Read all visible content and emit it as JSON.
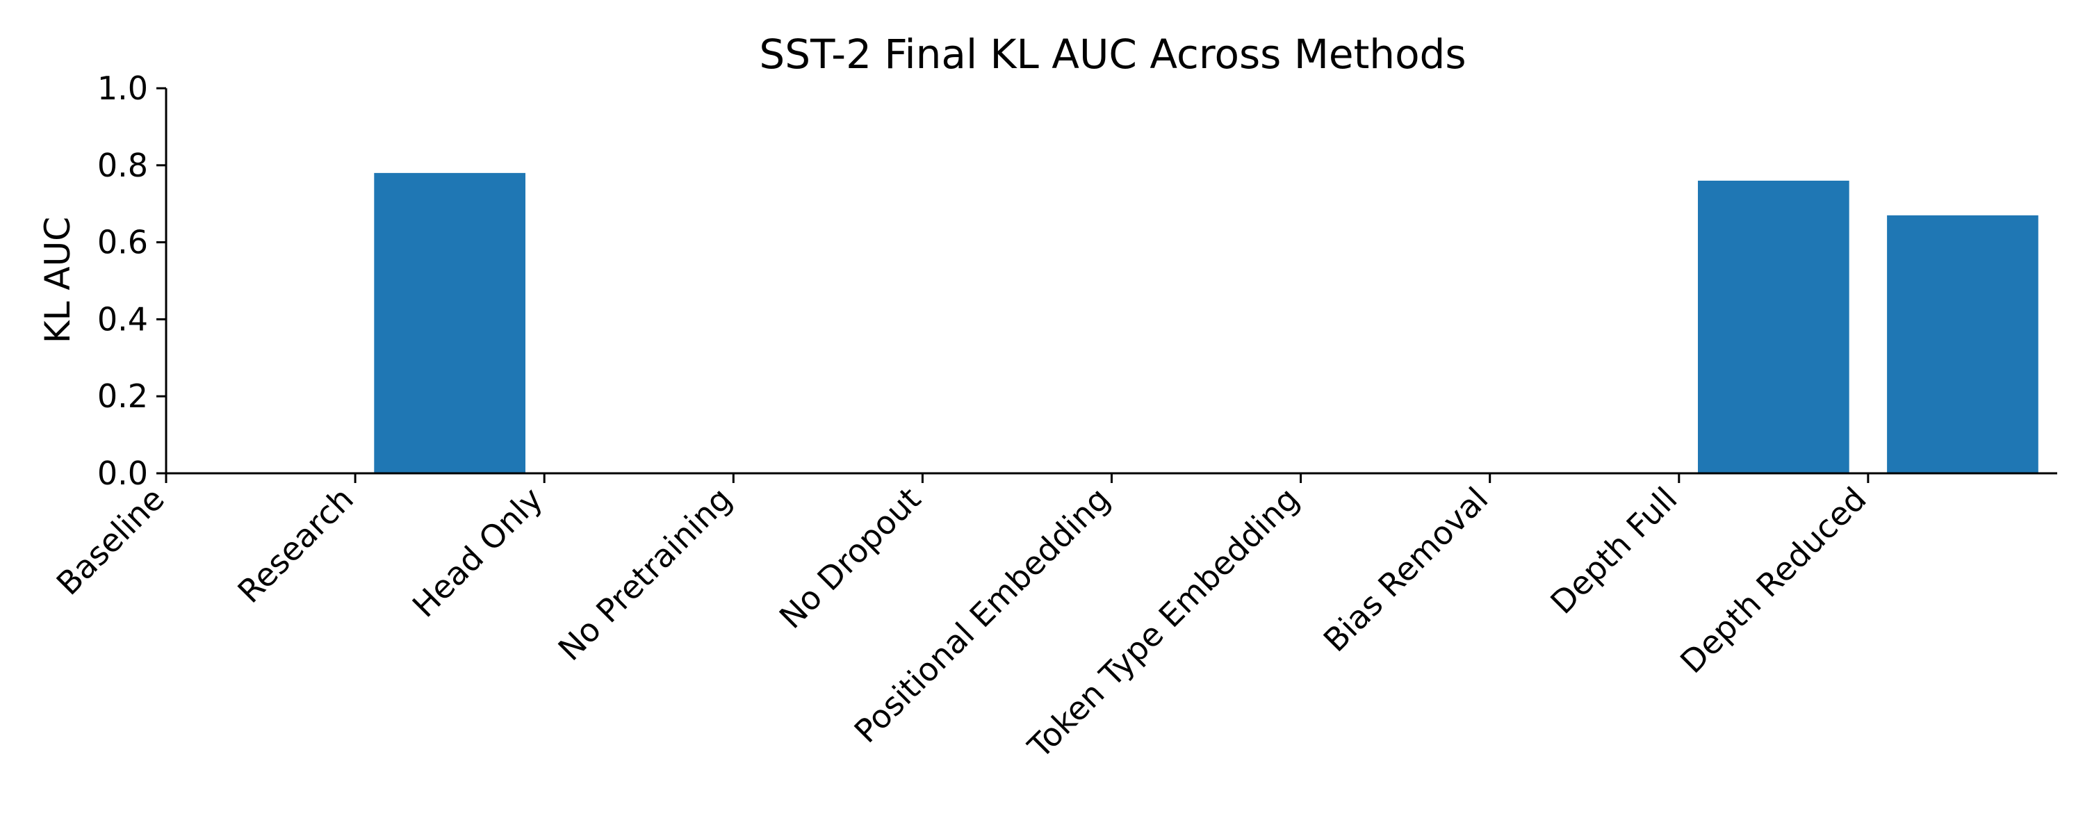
{
  "chart_data": {
    "type": "bar",
    "title": "SST-2 Final KL AUC Across Methods",
    "xlabel": "",
    "ylabel": "KL AUC",
    "categories": [
      "Baseline",
      "Research",
      "Head Only",
      "No Pretraining",
      "No Dropout",
      "Positional Embedding",
      "Token Type Embedding",
      "Bias Removal",
      "Depth Full",
      "Depth Reduced"
    ],
    "values": [
      0.0,
      0.78,
      0.0,
      0.0,
      0.0,
      0.0,
      0.0,
      0.0,
      0.76,
      0.67
    ],
    "yticks": [
      "0.0",
      "0.2",
      "0.4",
      "0.6",
      "0.8",
      "1.0"
    ],
    "ylim": [
      0,
      1.0
    ],
    "grid": false,
    "bar_color": "#1f77b4"
  }
}
